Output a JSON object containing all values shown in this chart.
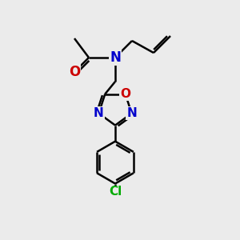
{
  "background_color": "#ebebeb",
  "bond_color": "#000000",
  "bond_width": 1.8,
  "atom_colors": {
    "N": "#0000cc",
    "O": "#cc0000",
    "Cl": "#00aa00",
    "C": "#000000"
  },
  "figsize": [
    3.0,
    3.0
  ],
  "dpi": 100,
  "xlim": [
    0,
    10
  ],
  "ylim": [
    0,
    10
  ]
}
